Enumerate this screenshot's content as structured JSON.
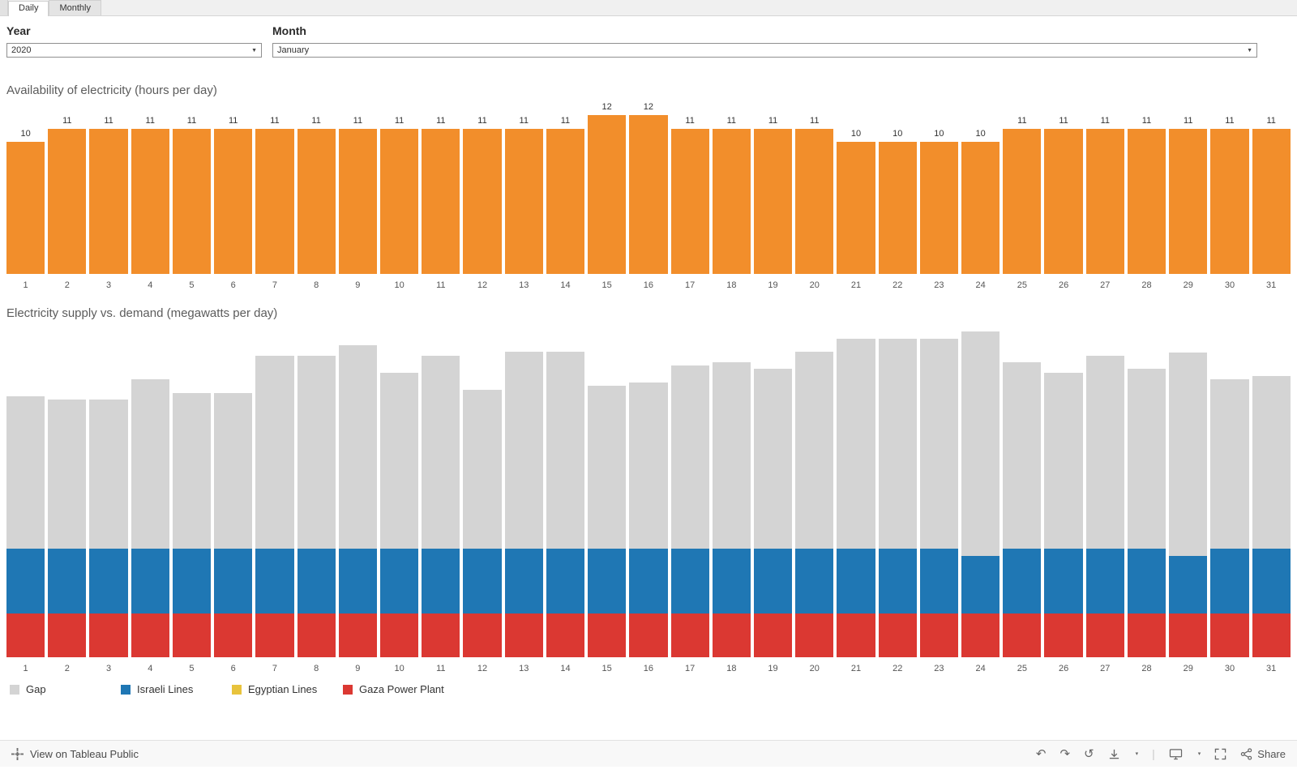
{
  "tab_bar": {
    "tabs": [
      {
        "label": "Daily",
        "active": true
      },
      {
        "label": "Monthly",
        "active": false
      }
    ]
  },
  "filters": {
    "year_label": "Year",
    "year_value": "2020",
    "month_label": "Month",
    "month_value": "January"
  },
  "chart_data": [
    {
      "type": "bar",
      "title": "Availability of electricity (hours per day)",
      "xlabel": "",
      "ylabel": "",
      "categories": [
        1,
        2,
        3,
        4,
        5,
        6,
        7,
        8,
        9,
        10,
        11,
        12,
        13,
        14,
        15,
        16,
        17,
        18,
        19,
        20,
        21,
        22,
        23,
        24,
        25,
        26,
        27,
        28,
        29,
        30,
        31
      ],
      "values": [
        10,
        11,
        11,
        11,
        11,
        11,
        11,
        11,
        11,
        11,
        11,
        11,
        11,
        11,
        12,
        12,
        11,
        11,
        11,
        11,
        10,
        10,
        10,
        10,
        11,
        11,
        11,
        11,
        11,
        11,
        11
      ],
      "bar_color": "#F28E2B",
      "ylim": [
        0,
        13.5
      ],
      "grid": false,
      "value_labels": true,
      "legend_position": "none"
    },
    {
      "type": "stacked-bar",
      "title": "Electricity supply vs. demand (megawatts per day)",
      "xlabel": "",
      "ylabel": "",
      "categories": [
        1,
        2,
        3,
        4,
        5,
        6,
        7,
        8,
        9,
        10,
        11,
        12,
        13,
        14,
        15,
        16,
        17,
        18,
        19,
        20,
        21,
        22,
        23,
        24,
        25,
        26,
        27,
        28,
        29,
        30,
        31
      ],
      "series": [
        {
          "name": "Gaza Power Plant",
          "color": "#DB3832",
          "values": [
            65,
            65,
            65,
            65,
            65,
            65,
            65,
            65,
            65,
            65,
            65,
            65,
            65,
            65,
            65,
            65,
            65,
            65,
            65,
            65,
            65,
            65,
            65,
            65,
            65,
            65,
            65,
            65,
            65,
            65,
            65
          ]
        },
        {
          "name": "Egyptian Lines",
          "color": "#E8C33C",
          "values": [
            0,
            0,
            0,
            0,
            0,
            0,
            0,
            0,
            0,
            0,
            0,
            0,
            0,
            0,
            0,
            0,
            0,
            0,
            0,
            0,
            0,
            0,
            0,
            0,
            0,
            0,
            0,
            0,
            0,
            0,
            0
          ]
        },
        {
          "name": "Israeli Lines",
          "color": "#1F77B4",
          "values": [
            95,
            95,
            95,
            95,
            95,
            95,
            95,
            95,
            95,
            95,
            95,
            95,
            95,
            95,
            95,
            95,
            95,
            95,
            95,
            95,
            95,
            95,
            95,
            85,
            95,
            95,
            95,
            95,
            85,
            95,
            95
          ]
        },
        {
          "name": "Gap",
          "color": "#D4D4D4",
          "values": [
            225,
            220,
            220,
            250,
            230,
            230,
            285,
            285,
            300,
            260,
            285,
            235,
            290,
            290,
            240,
            245,
            270,
            275,
            265,
            290,
            310,
            310,
            310,
            330,
            275,
            260,
            285,
            265,
            300,
            250,
            255
          ]
        }
      ],
      "stack_order_bottom_to_top": [
        "Gaza Power Plant",
        "Egyptian Lines",
        "Israeli Lines",
        "Gap"
      ],
      "ylim": [
        0,
        490
      ],
      "grid": false,
      "value_labels": false,
      "legend_position": "bottom"
    }
  ],
  "legend": [
    {
      "label": "Gap",
      "color": "#D4D4D4"
    },
    {
      "label": "Israeli Lines",
      "color": "#1F77B4"
    },
    {
      "label": "Egyptian Lines",
      "color": "#E8C33C"
    },
    {
      "label": "Gaza Power Plant",
      "color": "#DB3832"
    }
  ],
  "footer": {
    "view_on_text": "View on Tableau Public",
    "share_label": "Share",
    "undo_icon": "↶",
    "redo_icon": "↷",
    "reset_icon": "↺",
    "caret": "▾",
    "separator": "|"
  }
}
